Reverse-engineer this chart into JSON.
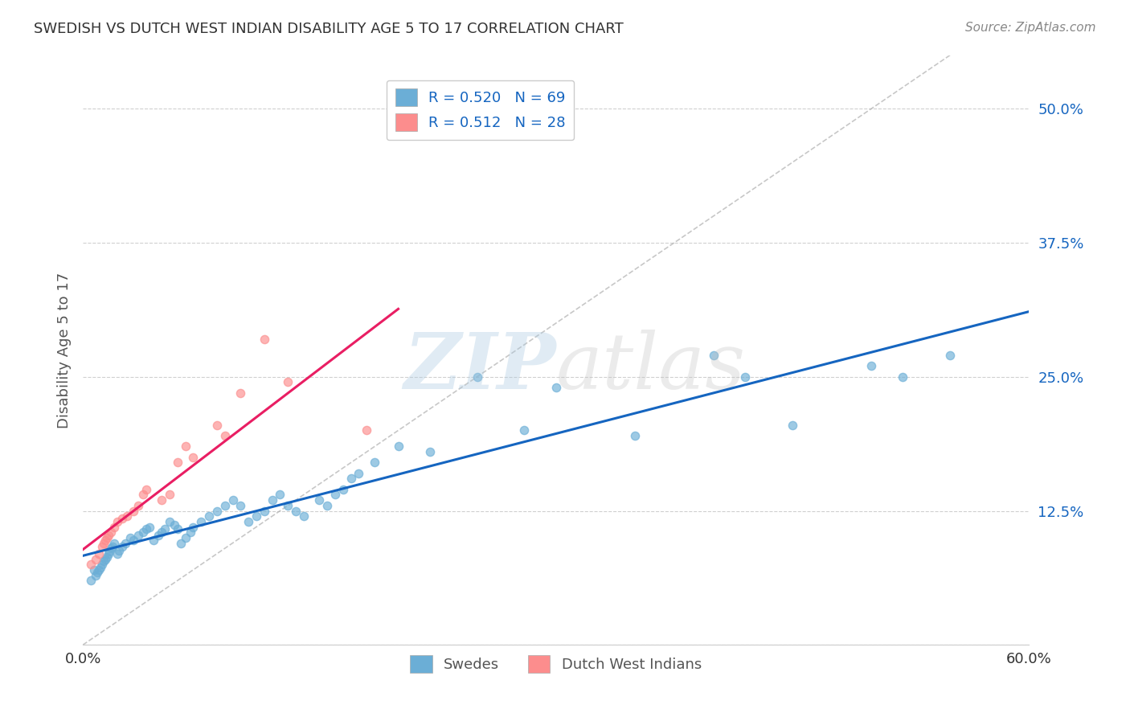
{
  "title": "SWEDISH VS DUTCH WEST INDIAN DISABILITY AGE 5 TO 17 CORRELATION CHART",
  "source": "Source: ZipAtlas.com",
  "ylabel": "Disability Age 5 to 17",
  "xmin": 0.0,
  "xmax": 0.6,
  "ymin": 0.0,
  "ymax": 0.55,
  "yticks": [
    0.0,
    0.125,
    0.25,
    0.375,
    0.5
  ],
  "ytick_labels": [
    "",
    "12.5%",
    "25.0%",
    "37.5%",
    "50.0%"
  ],
  "xticks": [
    0.0,
    0.1,
    0.2,
    0.3,
    0.4,
    0.5,
    0.6
  ],
  "xtick_labels": [
    "0.0%",
    "",
    "",
    "",
    "",
    "",
    "60.0%"
  ],
  "blue_color": "#6baed6",
  "pink_color": "#fc8d8d",
  "blue_line_color": "#1565c0",
  "pink_line_color": "#e91e63",
  "diagonal_color": "#b0b0b0",
  "legend_R1": "R = 0.520",
  "legend_N1": "N = 69",
  "legend_R2": "R = 0.512",
  "legend_N2": "N = 28",
  "swedes_label": "Swedes",
  "dutch_label": "Dutch West Indians",
  "swedes_x": [
    0.005,
    0.007,
    0.008,
    0.009,
    0.01,
    0.011,
    0.012,
    0.013,
    0.014,
    0.015,
    0.016,
    0.017,
    0.018,
    0.019,
    0.02,
    0.022,
    0.023,
    0.025,
    0.027,
    0.03,
    0.032,
    0.035,
    0.038,
    0.04,
    0.042,
    0.045,
    0.048,
    0.05,
    0.052,
    0.055,
    0.058,
    0.06,
    0.062,
    0.065,
    0.068,
    0.07,
    0.075,
    0.08,
    0.085,
    0.09,
    0.095,
    0.1,
    0.105,
    0.11,
    0.115,
    0.12,
    0.125,
    0.13,
    0.135,
    0.14,
    0.15,
    0.155,
    0.16,
    0.165,
    0.17,
    0.175,
    0.185,
    0.2,
    0.22,
    0.25,
    0.28,
    0.3,
    0.35,
    0.4,
    0.42,
    0.45,
    0.5,
    0.52,
    0.55
  ],
  "swedes_y": [
    0.06,
    0.07,
    0.065,
    0.068,
    0.07,
    0.072,
    0.075,
    0.078,
    0.08,
    0.082,
    0.085,
    0.087,
    0.09,
    0.092,
    0.095,
    0.085,
    0.088,
    0.092,
    0.095,
    0.1,
    0.098,
    0.102,
    0.105,
    0.108,
    0.11,
    0.098,
    0.102,
    0.105,
    0.108,
    0.115,
    0.112,
    0.108,
    0.095,
    0.1,
    0.105,
    0.11,
    0.115,
    0.12,
    0.125,
    0.13,
    0.135,
    0.13,
    0.115,
    0.12,
    0.125,
    0.135,
    0.14,
    0.13,
    0.125,
    0.12,
    0.135,
    0.13,
    0.14,
    0.145,
    0.155,
    0.16,
    0.17,
    0.185,
    0.18,
    0.25,
    0.2,
    0.24,
    0.195,
    0.27,
    0.25,
    0.205,
    0.26,
    0.25,
    0.27
  ],
  "dutch_x": [
    0.005,
    0.008,
    0.01,
    0.012,
    0.013,
    0.014,
    0.015,
    0.016,
    0.018,
    0.02,
    0.022,
    0.025,
    0.028,
    0.032,
    0.035,
    0.038,
    0.04,
    0.05,
    0.055,
    0.06,
    0.065,
    0.07,
    0.085,
    0.09,
    0.1,
    0.115,
    0.13,
    0.18
  ],
  "dutch_y": [
    0.075,
    0.08,
    0.085,
    0.092,
    0.095,
    0.098,
    0.1,
    0.102,
    0.105,
    0.11,
    0.115,
    0.118,
    0.12,
    0.125,
    0.13,
    0.14,
    0.145,
    0.135,
    0.14,
    0.17,
    0.185,
    0.175,
    0.205,
    0.195,
    0.235,
    0.285,
    0.245,
    0.2
  ],
  "bg_color": "#ffffff",
  "grid_color": "#d0d0d0",
  "title_color": "#333333",
  "tick_label_color_y": "#1565c0",
  "tick_label_color_x": "#333333"
}
